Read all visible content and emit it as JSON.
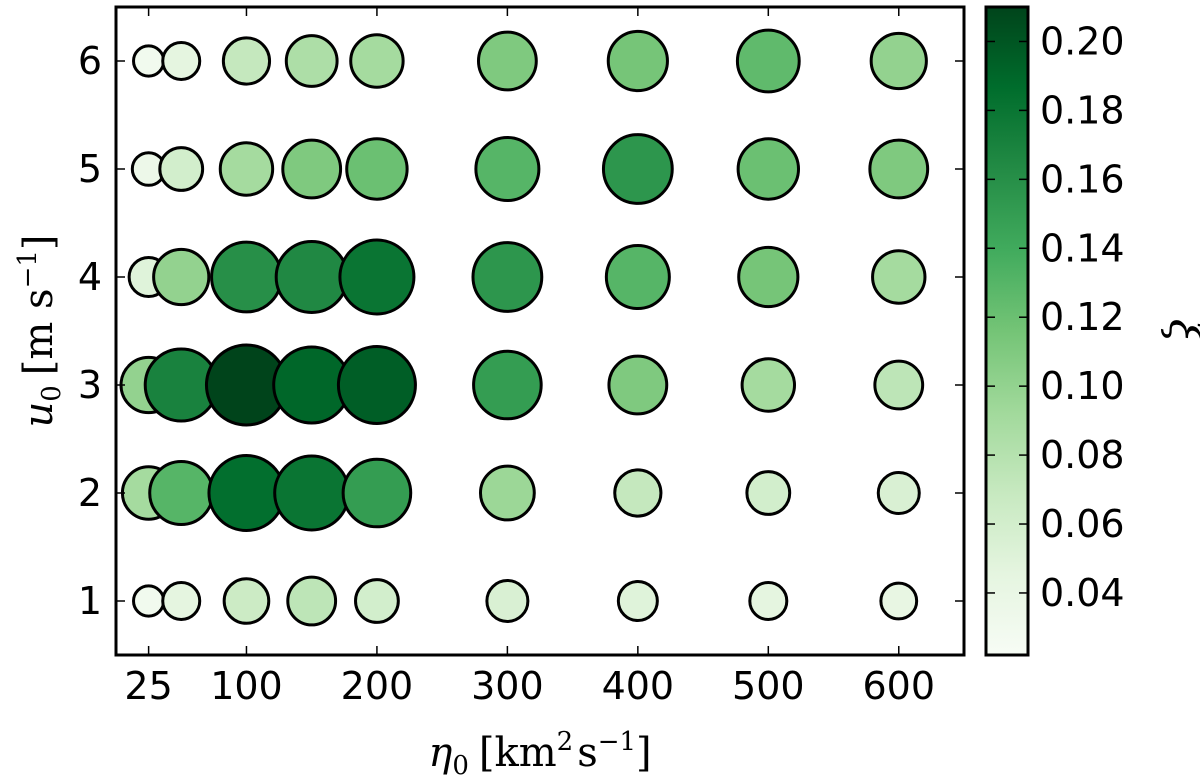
{
  "chart_data": {
    "type": "scatter",
    "title": "",
    "xlabel_symbol": "η",
    "xlabel_sub": "0",
    "xlabel_units": "[km",
    "xlabel_units_sup": "2",
    "xlabel_units_tail": "s",
    "xlabel_units_tail_sup": "−1",
    "xlabel_units_close": "]",
    "ylabel_symbol": "u",
    "ylabel_sub": "0",
    "ylabel_units": "[m s",
    "ylabel_units_sup": "−1",
    "ylabel_units_close": "]",
    "colorbar_label": "ξ",
    "colorbar_range": [
      0.022,
      0.21
    ],
    "colorbar_ticks": [
      "0.04",
      "0.06",
      "0.08",
      "0.10",
      "0.12",
      "0.14",
      "0.16",
      "0.18",
      "0.20"
    ],
    "colormap": [
      "#f7fcf5",
      "#e5f5e0",
      "#c7e9c0",
      "#a1d99b",
      "#74c476",
      "#41ab5d",
      "#238b45",
      "#006d2c",
      "#00441b"
    ],
    "x_positions": [
      25,
      50,
      100,
      150,
      200,
      300,
      400,
      500,
      600
    ],
    "xticks": [
      25,
      100,
      200,
      300,
      400,
      500,
      600
    ],
    "xlim": [
      0,
      650
    ],
    "yticks": [
      1,
      2,
      3,
      4,
      5,
      6
    ],
    "ylim": [
      0.5,
      6.5
    ],
    "size_encodes": "ξ",
    "points_xi": {
      "1": [
        0.03,
        0.045,
        0.065,
        0.075,
        0.06,
        0.055,
        0.05,
        0.045,
        0.042
      ],
      "2": [
        0.09,
        0.13,
        0.185,
        0.18,
        0.15,
        0.095,
        0.07,
        0.06,
        0.055
      ],
      "3": [
        0.1,
        0.17,
        0.21,
        0.19,
        0.195,
        0.15,
        0.11,
        0.09,
        0.075
      ],
      "4": [
        0.05,
        0.1,
        0.16,
        0.165,
        0.18,
        0.155,
        0.13,
        0.115,
        0.09
      ],
      "5": [
        0.035,
        0.06,
        0.09,
        0.11,
        0.12,
        0.13,
        0.155,
        0.12,
        0.11
      ],
      "6": [
        0.03,
        0.045,
        0.07,
        0.085,
        0.09,
        0.11,
        0.115,
        0.125,
        0.1
      ]
    }
  }
}
